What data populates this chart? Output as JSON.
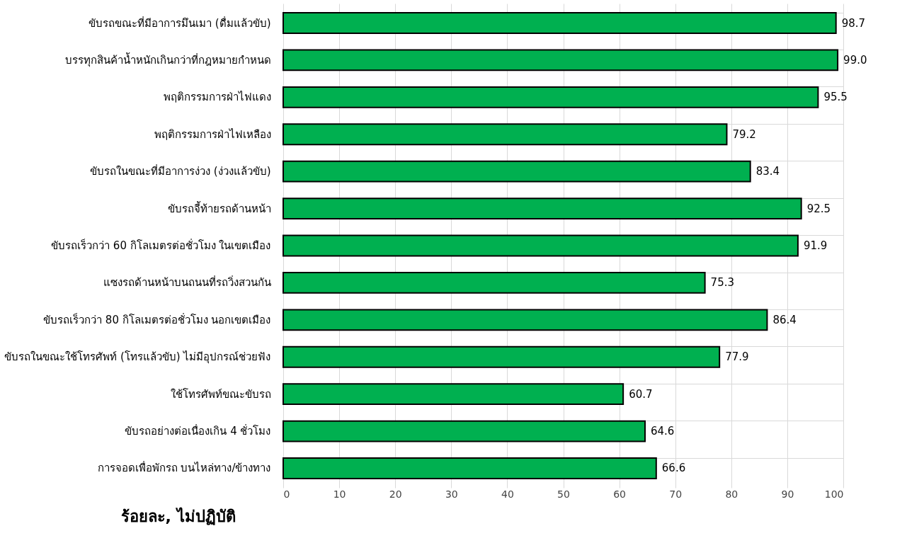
{
  "chart_data": {
    "type": "bar",
    "orientation": "horizontal",
    "xlabel": "ร้อยละ, ไม่ปฏิบัติ",
    "categories": [
      "ขับรถขณะที่มีอาการมึนเมา (ดื่มแล้วขับ)",
      "บรรทุกสินค้าน้ำหนักเกินกว่าที่กฎหมายกำหนด",
      "พฤติกรรมการฝ่าไฟแดง",
      "พฤติกรรมการฝ่าไฟเหลือง",
      "ขับรถในขณะที่มีอาการง่วง (ง่วงแล้วขับ)",
      "ขับรถจี้ท้ายรถด้านหน้า",
      "ขับรถเร็วกว่า 60 กิโลเมตรต่อชั่วโมง ในเขตเมือง",
      "แซงรถด้านหน้าบนถนนที่รถวิ่งสวนกัน",
      "ขับรถเร็วกว่า 80 กิโลเมตรต่อชั่วโมง นอกเขตเมือง",
      "ขับรถในขณะใช้โทรศัพท์ (โทรแล้วขับ) ไม่มีอุปกรณ์ช่วยฟัง",
      "ใช้โทรศัพท์ขณะขับรถ",
      "ขับรถอย่างต่อเนื่องเกิน 4 ชั่วโมง",
      "การจอดเพื่อพักรถ บนไหล่ทาง/ข้างทาง"
    ],
    "values": [
      98.7,
      99.0,
      95.5,
      79.2,
      83.4,
      92.5,
      91.9,
      75.3,
      86.4,
      77.9,
      60.7,
      64.6,
      66.6
    ],
    "color": "#00b050",
    "xlim": [
      0,
      100
    ],
    "xticks": [
      0,
      10,
      20,
      30,
      40,
      50,
      60,
      70,
      80,
      90,
      100
    ],
    "grid": true,
    "value_labels": [
      "98.7",
      "99.0",
      "95.5",
      "79.2",
      "83.4",
      "92.5",
      "91.9",
      "75.3",
      "86.4",
      "77.9",
      "60.7",
      "64.6",
      "66.6"
    ]
  }
}
